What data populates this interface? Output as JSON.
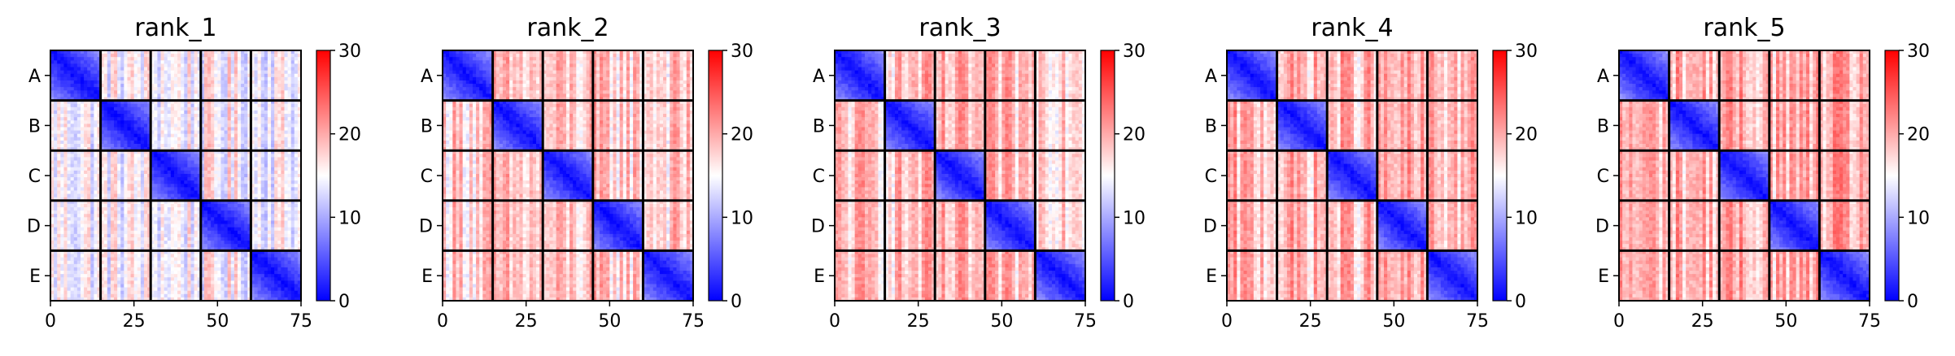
{
  "chart_data": [
    {
      "type": "heatmap",
      "title": "rank_1",
      "group_labels": [
        "A",
        "B",
        "C",
        "D",
        "E"
      ],
      "group_size": 15,
      "n": 75,
      "xticks": [
        0,
        25,
        50,
        75
      ],
      "within_group_mean": 3,
      "between_group_mean": 15,
      "colorbar": {
        "range": [
          0,
          30
        ],
        "ticks": [
          0,
          10,
          20,
          30
        ],
        "colormap": [
          "#0000ff",
          "#ffffff",
          "#ff0000"
        ]
      }
    },
    {
      "type": "heatmap",
      "title": "rank_2",
      "group_labels": [
        "A",
        "B",
        "C",
        "D",
        "E"
      ],
      "group_size": 15,
      "n": 75,
      "xticks": [
        0,
        25,
        50,
        75
      ],
      "within_group_mean": 4,
      "between_group_mean": 18,
      "colorbar": {
        "range": [
          0,
          30
        ],
        "ticks": [
          0,
          10,
          20,
          30
        ],
        "colormap": [
          "#0000ff",
          "#ffffff",
          "#ff0000"
        ]
      }
    },
    {
      "type": "heatmap",
      "title": "rank_3",
      "group_labels": [
        "A",
        "B",
        "C",
        "D",
        "E"
      ],
      "group_size": 15,
      "n": 75,
      "xticks": [
        0,
        25,
        50,
        75
      ],
      "within_group_mean": 4,
      "between_group_mean": 18.5,
      "colorbar": {
        "range": [
          0,
          30
        ],
        "ticks": [
          0,
          10,
          20,
          30
        ],
        "colormap": [
          "#0000ff",
          "#ffffff",
          "#ff0000"
        ]
      }
    },
    {
      "type": "heatmap",
      "title": "rank_4",
      "group_labels": [
        "A",
        "B",
        "C",
        "D",
        "E"
      ],
      "group_size": 15,
      "n": 75,
      "xticks": [
        0,
        25,
        50,
        75
      ],
      "within_group_mean": 4,
      "between_group_mean": 19,
      "colorbar": {
        "range": [
          0,
          30
        ],
        "ticks": [
          0,
          10,
          20,
          30
        ],
        "colormap": [
          "#0000ff",
          "#ffffff",
          "#ff0000"
        ]
      }
    },
    {
      "type": "heatmap",
      "title": "rank_5",
      "group_labels": [
        "A",
        "B",
        "C",
        "D",
        "E"
      ],
      "group_size": 15,
      "n": 75,
      "xticks": [
        0,
        25,
        50,
        75
      ],
      "within_group_mean": 4,
      "between_group_mean": 19.5,
      "colorbar": {
        "range": [
          0,
          30
        ],
        "ticks": [
          0,
          10,
          20,
          30
        ],
        "colormap": [
          "#0000ff",
          "#ffffff",
          "#ff0000"
        ]
      }
    }
  ]
}
